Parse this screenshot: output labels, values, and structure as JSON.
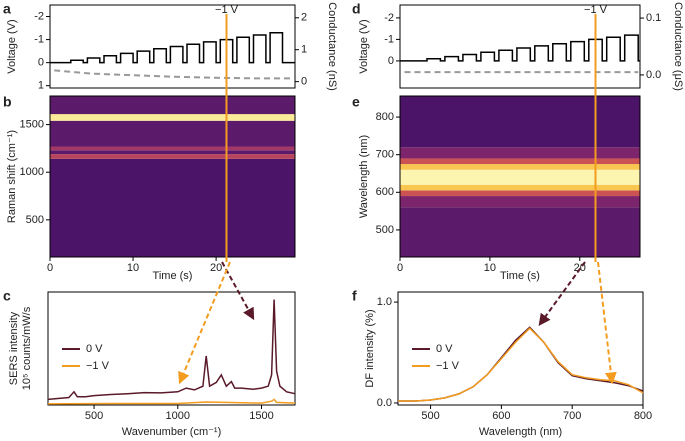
{
  "chart_data": [
    {
      "type": "line",
      "panel": "a",
      "ylabel": "Voltage (V)",
      "y2label": "Conductance (nS)",
      "annotation": "−1 V",
      "xlim": [
        0,
        29.5
      ],
      "ylim": [
        1.1,
        -2.5
      ],
      "yticks": [
        -2,
        -1,
        0,
        1
      ],
      "y2lim": [
        -0.2,
        2.4
      ],
      "y2ticks": [
        0,
        1,
        2
      ],
      "series": [
        {
          "color": "#000000",
          "dashed": false,
          "x": [
            0,
            2.5,
            2.5,
            4,
            4,
            4.5,
            4.5,
            6,
            6,
            6.5,
            6.5,
            8,
            8,
            8.5,
            8.5,
            10,
            10,
            10.5,
            10.5,
            12,
            12,
            12.5,
            12.5,
            14,
            14,
            14.5,
            14.5,
            16,
            16,
            16.5,
            16.5,
            18,
            18,
            18.5,
            18.5,
            20,
            20,
            20.5,
            20.5,
            22,
            22,
            22.5,
            22.5,
            24,
            24,
            24.5,
            24.5,
            26,
            26,
            26.5,
            26.5,
            28,
            28,
            29.5
          ],
          "values": [
            0,
            0,
            -0.1,
            -0.1,
            0,
            0,
            -0.2,
            -0.2,
            0,
            0,
            -0.3,
            -0.3,
            0,
            0,
            -0.4,
            -0.4,
            0,
            0,
            -0.5,
            -0.5,
            0,
            0,
            -0.6,
            -0.6,
            0,
            0,
            -0.7,
            -0.7,
            0,
            0,
            -0.8,
            -0.8,
            0,
            0,
            -0.9,
            -0.9,
            0,
            0,
            -1.0,
            -1.0,
            0,
            0,
            -1.1,
            -1.1,
            0,
            0,
            -1.2,
            -1.2,
            0,
            0,
            -1.3,
            -1.3,
            0,
            0
          ]
        },
        {
          "color": "#999999",
          "dashed": true,
          "axis": "y2",
          "x": [
            0.5,
            5,
            10,
            15,
            20,
            25,
            29
          ],
          "values": [
            0.35,
            0.25,
            0.2,
            0.15,
            0.12,
            0.1,
            0.1
          ]
        }
      ]
    },
    {
      "type": "heatmap",
      "panel": "b",
      "ylabel": "Raman shift (cm⁻¹)",
      "xlabel": "Time (s)",
      "xlim": [
        0,
        29.5
      ],
      "xticks": [
        0,
        10,
        20
      ],
      "ylim": [
        110,
        1800
      ],
      "yticks": [
        500,
        1000,
        1500
      ],
      "colorscale": [
        "#2a0a4a",
        "#4b1468",
        "#8c2a6f",
        "#e0604a",
        "#f9c74f",
        "#fbf5b0"
      ],
      "y_edges": [
        110,
        1140,
        1190,
        1230,
        1270,
        1540,
        1610,
        1800
      ],
      "intensity": [
        0.2,
        0.5,
        0.25,
        0.45,
        0.25,
        0.95,
        0.25
      ]
    },
    {
      "type": "line",
      "panel": "c",
      "ylabel": [
        "SERS intensity",
        "10⁵ counts/mW/s"
      ],
      "xlabel": "Wavenumber (cm⁻¹)",
      "xlim": [
        225,
        1700
      ],
      "xticks": [
        500,
        1000,
        1500
      ],
      "ylim": [
        0,
        3.0
      ],
      "legend": "left",
      "series": [
        {
          "name": "0 V",
          "color": "#5a1a2a",
          "dashed": false,
          "x": [
            225,
            300,
            350,
            380,
            400,
            450,
            500,
            600,
            700,
            800,
            900,
            1000,
            1050,
            1100,
            1150,
            1170,
            1190,
            1230,
            1260,
            1290,
            1320,
            1340,
            1380,
            1450,
            1500,
            1540,
            1560,
            1575,
            1590,
            1610,
            1650,
            1700
          ],
          "values": [
            0.15,
            0.18,
            0.2,
            0.35,
            0.22,
            0.22,
            0.25,
            0.28,
            0.3,
            0.33,
            0.32,
            0.35,
            0.45,
            0.4,
            0.5,
            1.3,
            0.5,
            0.6,
            0.8,
            0.5,
            0.62,
            0.45,
            0.45,
            0.42,
            0.45,
            0.5,
            0.8,
            2.8,
            0.9,
            0.5,
            0.35,
            0.3
          ]
        },
        {
          "name": "−1 V",
          "color": "#f39c1f",
          "dashed": false,
          "x": [
            225,
            600,
            1000,
            1170,
            1500,
            1560,
            1575,
            1590,
            1700
          ],
          "values": [
            0.03,
            0.04,
            0.04,
            0.08,
            0.05,
            0.1,
            0.15,
            0.07,
            0.05
          ]
        }
      ]
    },
    {
      "type": "line",
      "panel": "d",
      "ylabel": "Voltage (V)",
      "y2label": "Conductance (μS)",
      "annotation": "−1 V",
      "xlim": [
        0,
        26.7
      ],
      "ylim": [
        1.26,
        -2.6
      ],
      "yticks": [
        -2,
        -1,
        0
      ],
      "y2lim": [
        -0.023,
        0.123
      ],
      "y2ticks": [
        {
          "value": 0,
          "label": "0.0"
        },
        0.1
      ],
      "series": [
        {
          "color": "#000000",
          "dashed": false,
          "x": [
            0,
            3,
            3,
            4.5,
            4.5,
            5,
            5,
            6.5,
            6.5,
            7,
            7,
            8.5,
            8.5,
            9,
            9,
            10.5,
            10.5,
            11,
            11,
            12.5,
            12.5,
            13,
            13,
            14.5,
            14.5,
            15,
            15,
            16.5,
            16.5,
            17,
            17,
            18.5,
            18.5,
            19,
            19,
            20.5,
            20.5,
            21,
            21,
            22.5,
            22.5,
            23,
            23,
            24.5,
            24.5,
            25,
            25,
            26.5,
            26.5,
            26.7
          ],
          "values": [
            0,
            0,
            -0.1,
            -0.1,
            0,
            0,
            -0.2,
            -0.2,
            0,
            0,
            -0.3,
            -0.3,
            0,
            0,
            -0.4,
            -0.4,
            0,
            0,
            -0.5,
            -0.5,
            0,
            0,
            -0.6,
            -0.6,
            0,
            0,
            -0.7,
            -0.7,
            0,
            0,
            -0.8,
            -0.8,
            0,
            0,
            -0.9,
            -0.9,
            0,
            0,
            -1.0,
            -1.0,
            0,
            0,
            -1.1,
            -1.1,
            0,
            0,
            -1.2,
            -1.2,
            0,
            0
          ]
        },
        {
          "color": "#999999",
          "dashed": true,
          "axis": "y2",
          "x": [
            0.5,
            5,
            10,
            15,
            20,
            26.5
          ],
          "values": [
            0.005,
            0.005,
            0.005,
            0.005,
            0.005,
            0.005
          ]
        }
      ]
    },
    {
      "type": "heatmap",
      "panel": "e",
      "ylabel": "Wavelength (nm)",
      "xlabel": "Time (s)",
      "xlim": [
        0,
        26.7
      ],
      "xticks": [
        0,
        10,
        20
      ],
      "ylim": [
        428,
        856
      ],
      "yticks": [
        500,
        600,
        700,
        800
      ],
      "colorscale": [
        "#2a0a4a",
        "#4b1468",
        "#8c2a6f",
        "#e0604a",
        "#f9c74f",
        "#fbf5b0"
      ],
      "y_edges": [
        428,
        560,
        590,
        605,
        620,
        660,
        675,
        690,
        720,
        856
      ],
      "intensity": [
        0.25,
        0.35,
        0.55,
        0.8,
        1.0,
        0.8,
        0.55,
        0.35,
        0.2
      ]
    },
    {
      "type": "line",
      "panel": "f",
      "ylabel": "DF intensity (%)",
      "xlabel": "Wavelength (nm)",
      "xlim": [
        454,
        800
      ],
      "xticks": [
        500,
        600,
        700,
        800
      ],
      "ylim": [
        -0.02,
        1.1
      ],
      "yticks": [
        {
          "value": 0,
          "label": "0.0"
        },
        {
          "value": 1,
          "label": "1.0"
        }
      ],
      "legend": "left",
      "series": [
        {
          "name": "0 V",
          "color": "#5a1a2a",
          "dashed": false,
          "x": [
            454,
            480,
            500,
            520,
            540,
            560,
            580,
            600,
            620,
            640,
            660,
            680,
            700,
            720,
            740,
            760,
            780,
            800
          ],
          "values": [
            0.02,
            0.02,
            0.03,
            0.05,
            0.09,
            0.16,
            0.28,
            0.45,
            0.62,
            0.75,
            0.6,
            0.4,
            0.27,
            0.24,
            0.22,
            0.2,
            0.17,
            0.12
          ]
        },
        {
          "name": "−1 V",
          "color": "#f39c1f",
          "dashed": false,
          "x": [
            454,
            480,
            500,
            520,
            540,
            560,
            580,
            600,
            620,
            640,
            660,
            680,
            700,
            720,
            740,
            760,
            780,
            800
          ],
          "values": [
            0.02,
            0.02,
            0.03,
            0.05,
            0.09,
            0.16,
            0.28,
            0.44,
            0.6,
            0.74,
            0.6,
            0.41,
            0.28,
            0.25,
            0.23,
            0.22,
            0.18,
            0.1
          ]
        }
      ]
    }
  ]
}
